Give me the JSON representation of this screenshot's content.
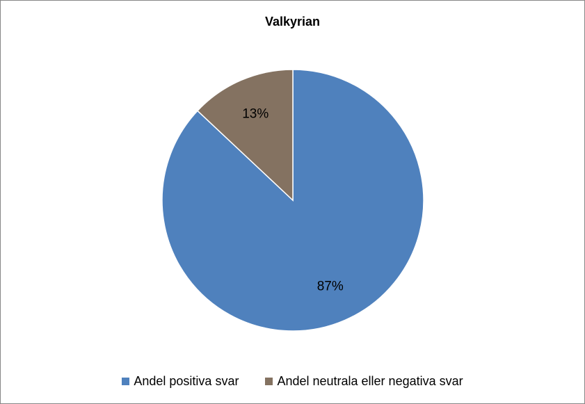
{
  "chart_data": {
    "type": "pie",
    "title": "Valkyrian",
    "slices": [
      {
        "name": "Andel positiva svar",
        "value": 87,
        "label": "87%",
        "color": "#4f81bd"
      },
      {
        "name": "Andel neutrala eller negativa svar",
        "value": 13,
        "label": "13%",
        "color": "#847261"
      }
    ],
    "start_angle_deg": 0,
    "direction": "clockwise",
    "legend_position": "bottom"
  }
}
